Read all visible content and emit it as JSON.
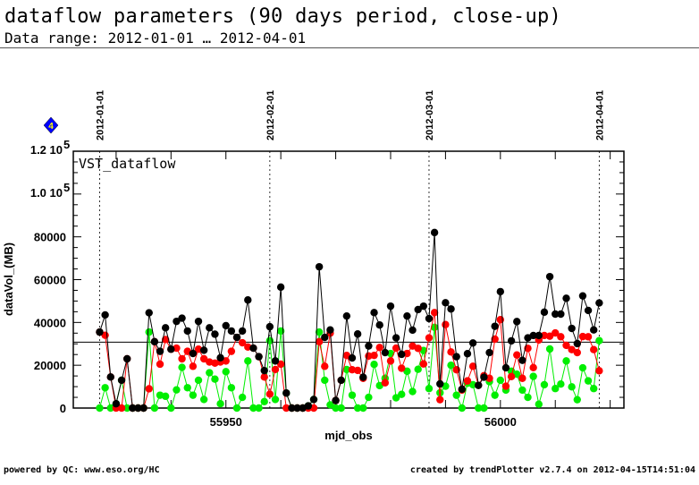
{
  "header": {
    "title": "dataflow parameters (90 days period, close-up)",
    "subtitle": "Data range: 2012-01-01 … 2012-04-01"
  },
  "marker": {
    "icon": "diamond-number-icon",
    "label": "4",
    "fill": "#0000ff",
    "text_color": "#ffff00"
  },
  "footer": {
    "left": "powered by QC: www.eso.org/HC",
    "right": "created by trendPlotter v2.7.4 on 2012-04-15T14:51:04"
  },
  "chart_data": {
    "type": "line",
    "title": "VST_dataflow",
    "xlabel": "mjd_obs",
    "ylabel": "dataVol_(MB)",
    "xlim": [
      55922.2,
      56022.5
    ],
    "ylim": [
      0,
      120000
    ],
    "x_ticks": [
      {
        "value": 55950,
        "label": "55950"
      },
      {
        "value": 56000,
        "label": "56000"
      }
    ],
    "y_ticks": [
      {
        "value": 0,
        "label": "0"
      },
      {
        "value": 20000,
        "label": "20000"
      },
      {
        "value": 40000,
        "label": "40000"
      },
      {
        "value": 60000,
        "label": "60000"
      },
      {
        "value": 80000,
        "label": "80000"
      },
      {
        "value": 100000,
        "label": "1.0 10",
        "exp": "5"
      },
      {
        "value": 120000,
        "label": "1.2 10",
        "exp": "5"
      }
    ],
    "date_markers": [
      {
        "value": 55927,
        "label": "2012-01-01"
      },
      {
        "value": 55958,
        "label": "2012-02-01"
      },
      {
        "value": 55987,
        "label": "2012-03-01"
      },
      {
        "value": 56018,
        "label": "2012-04-01"
      }
    ],
    "reference_line": 30800,
    "x_start": 55927,
    "series": [
      {
        "name": "total",
        "color": "#000000",
        "values": [
          35.5,
          43.5,
          14.5,
          2,
          13,
          23,
          0,
          0,
          0,
          44.5,
          31,
          26.5,
          37.5,
          27.5,
          40.5,
          42,
          36,
          25.5,
          40.5,
          27,
          37.5,
          34.5,
          23.5,
          38.5,
          36,
          33,
          36,
          50.5,
          28,
          24,
          17.5,
          38,
          22,
          56.5,
          7,
          0,
          0,
          0,
          1,
          4,
          66,
          33,
          36.5,
          3.5,
          13,
          43,
          23.4,
          34.6,
          14.4,
          29,
          44.6,
          38.8,
          25.9,
          47.6,
          32.8,
          25.1,
          43,
          36.4,
          46,
          47.6,
          41.8,
          82,
          11.3,
          49.2,
          46.3,
          24,
          8.8,
          25.4,
          30.4,
          10.6,
          14.4,
          25.9,
          38.2,
          54.4,
          18.8,
          31.4,
          40.4,
          22.3,
          32.8,
          33.9,
          33.9,
          44.8,
          61.4,
          43.9,
          43.9,
          51.3,
          37.2,
          30.1,
          52.4,
          45.6,
          36.5,
          49.1
        ]
      },
      {
        "name": "red",
        "color": "#ff0000",
        "values": [
          35.5,
          34,
          14.5,
          0,
          0,
          23,
          0,
          0,
          0,
          9,
          31,
          20.5,
          32,
          27.5,
          28,
          23,
          26.5,
          19.5,
          27.5,
          23,
          21.5,
          21,
          21.5,
          22,
          26.5,
          33,
          30.5,
          28.5,
          28,
          24,
          14.5,
          6.5,
          18,
          20.5,
          0,
          0,
          0,
          0,
          0,
          0,
          31,
          19.5,
          35,
          3.5,
          13,
          24.6,
          17.9,
          17.6,
          13.9,
          24.3,
          24.6,
          28.3,
          11.8,
          22,
          28,
          18.6,
          25.5,
          29,
          27.9,
          20.6,
          32.8,
          44.6,
          3.9,
          39,
          26.2,
          17.9,
          8.4,
          12.7,
          19.5,
          10.6,
          15.1,
          13.9,
          32.2,
          41.3,
          10.2,
          14.7,
          24.8,
          13.9,
          27.9,
          18.9,
          31.8,
          33.9,
          33.6,
          35.1,
          33.3,
          29.3,
          27.3,
          25.9,
          33.4,
          33.3,
          27.3,
          17.4
        ]
      },
      {
        "name": "green",
        "color": "#00ee00",
        "values": [
          0,
          9.5,
          0,
          2,
          13,
          0,
          0,
          0,
          0,
          35.5,
          0,
          6,
          5.5,
          0,
          8.5,
          19,
          9.5,
          6,
          13,
          4,
          16.5,
          13.5,
          2,
          17,
          9.5,
          0,
          5,
          22,
          0,
          0,
          3,
          31.5,
          4,
          36,
          7,
          0,
          0,
          0,
          1,
          4,
          35.5,
          13,
          1.5,
          0,
          0,
          18,
          6,
          0,
          0,
          5,
          20.4,
          10.5,
          13.9,
          25.5,
          4.8,
          6.4,
          17.2,
          7.7,
          18.1,
          26.9,
          9.1,
          37.7,
          7.1,
          10.2,
          20,
          6,
          0,
          11.6,
          10.9,
          0,
          0,
          12.3,
          6,
          13,
          8.4,
          17.2,
          15.8,
          8.4,
          5,
          14.8,
          1.8,
          10.9,
          27.6,
          9.1,
          11.2,
          22,
          9.9,
          3.9,
          18.8,
          12.7,
          9.1,
          31.5
        ]
      }
    ],
    "value_unit_multiplier": 1000,
    "grid": false,
    "legend": "none"
  }
}
